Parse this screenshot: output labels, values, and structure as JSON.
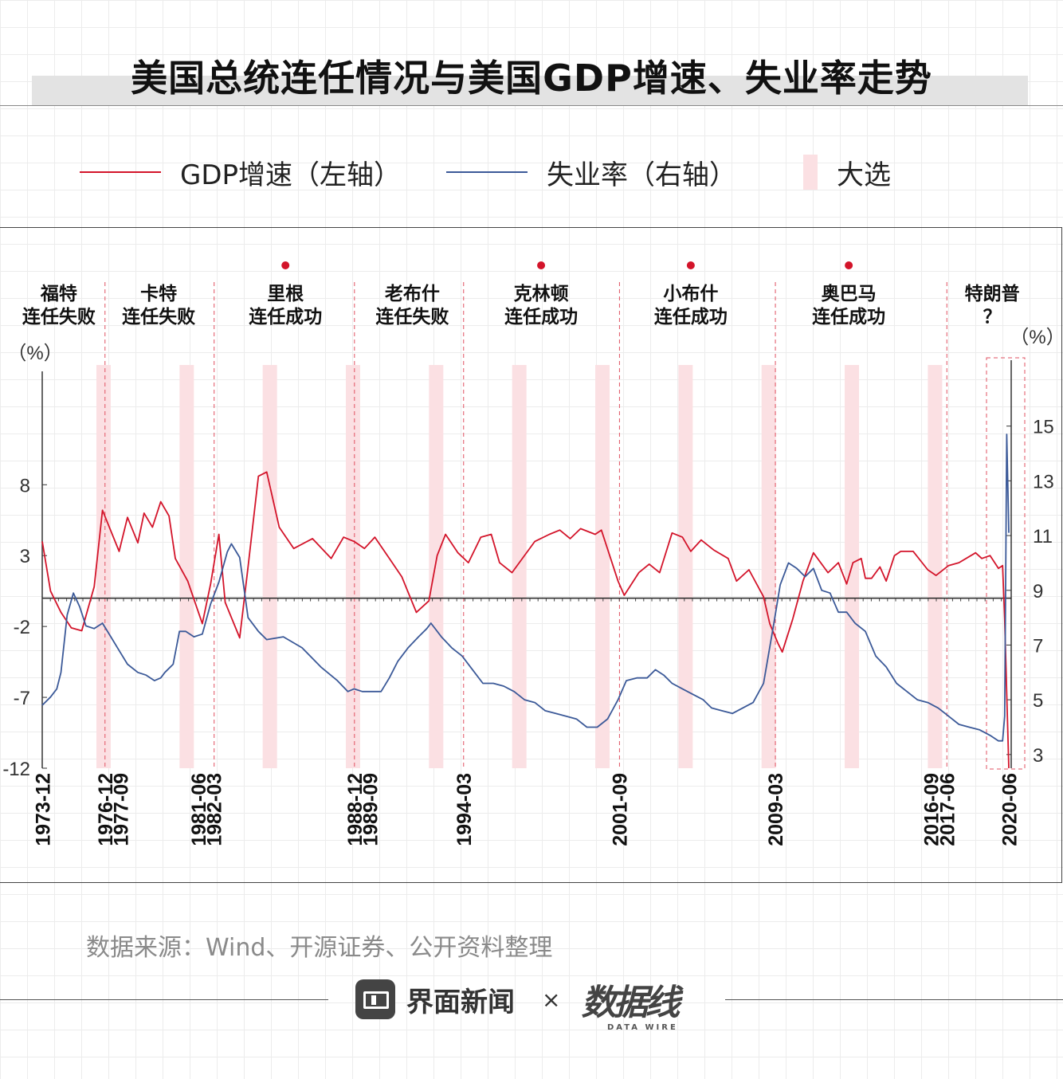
{
  "title": "美国总统连任情况与美国GDP增速、失业率走势",
  "legend": {
    "gdp": "GDP增速（左轴）",
    "unemployment": "失业率（右轴）",
    "election": "大选"
  },
  "colors": {
    "gdp": "#d3142a",
    "unemployment": "#3b5998",
    "election": "#fbe0e3",
    "divider": "#e05060"
  },
  "source": "数据来源：Wind、开源证券、公开资料整理",
  "footer": {
    "brand": "界面新闻",
    "times": "×",
    "logo": "数据线",
    "logo_sub": "DATA WIRE"
  },
  "chart_data": {
    "type": "line",
    "left_axis_unit": "（%）",
    "right_axis_unit": "（%）",
    "left_ticks": [
      8,
      3,
      -2,
      -7,
      -12
    ],
    "right_ticks": [
      15,
      13,
      11,
      9,
      7,
      5,
      3
    ],
    "left_ylim": [
      -12,
      16
    ],
    "right_ylim": [
      2.5,
      17
    ],
    "xlim": [
      1973.9,
      2020.4
    ],
    "x_tick_labels": [
      {
        "label": "1973-12",
        "x": 1973.92
      },
      {
        "label": "1976-12",
        "x": 1976.92
      },
      {
        "label": "1977-09",
        "x": 1977.67
      },
      {
        "label": "1981-06",
        "x": 1981.42
      },
      {
        "label": "1982-03",
        "x": 1982.17
      },
      {
        "label": "1988-12",
        "x": 1988.92
      },
      {
        "label": "1989-09",
        "x": 1989.67
      },
      {
        "label": "1994-03",
        "x": 1994.17
      },
      {
        "label": "2001-09",
        "x": 2001.67
      },
      {
        "label": "2009-03",
        "x": 2009.17
      },
      {
        "label": "2016-09",
        "x": 2016.67
      },
      {
        "label": "2017-06",
        "x": 2017.42
      },
      {
        "label": "2020-06",
        "x": 2020.42
      }
    ],
    "dividers": [
      1976.92,
      1982.17,
      1988.92,
      1994.17,
      2001.67,
      2009.17,
      2017.42
    ],
    "elections": [
      1976.85,
      1980.85,
      1984.85,
      1988.85,
      1992.85,
      1996.85,
      2000.85,
      2004.85,
      2008.85,
      2012.85,
      2016.85
    ],
    "presidencies": [
      {
        "name": "福特",
        "result": "连任失败",
        "x": 1974.7,
        "success": false
      },
      {
        "name": "卡特",
        "result": "连任失败",
        "x": 1979.5,
        "success": false
      },
      {
        "name": "里根",
        "result": "连任成功",
        "x": 1985.6,
        "success": true
      },
      {
        "name": "老布什",
        "result": "连任失败",
        "x": 1991.7,
        "success": false
      },
      {
        "name": "克林顿",
        "result": "连任成功",
        "x": 1997.9,
        "success": true
      },
      {
        "name": "小布什",
        "result": "连任成功",
        "x": 2005.1,
        "success": true
      },
      {
        "name": "奥巴马",
        "result": "连任成功",
        "x": 2012.7,
        "success": true
      },
      {
        "name": "特朗普",
        "result": "？",
        "x": 2019.6,
        "success": false
      }
    ],
    "series": [
      {
        "name": "GDP增速（左轴）",
        "axis": "left",
        "x": [
          1973.9,
          1974.3,
          1974.8,
          1975.3,
          1975.8,
          1976.4,
          1976.8,
          1977.6,
          1978.0,
          1978.5,
          1978.8,
          1979.2,
          1979.6,
          1980.0,
          1980.3,
          1980.9,
          1981.6,
          1982.0,
          1982.4,
          1982.7,
          1983.4,
          1983.8,
          1984.3,
          1984.7,
          1985.3,
          1986.0,
          1986.9,
          1987.8,
          1988.4,
          1988.9,
          1989.4,
          1989.9,
          1990.6,
          1991.2,
          1991.9,
          1992.5,
          1992.9,
          1993.3,
          1993.9,
          1994.4,
          1995.0,
          1995.5,
          1995.9,
          1996.5,
          1997.6,
          1998.3,
          1998.8,
          1999.3,
          1999.8,
          2000.5,
          2000.8,
          2001.6,
          2001.9,
          2002.6,
          2003.1,
          2003.6,
          2004.2,
          2004.7,
          2005.1,
          2005.6,
          2006.2,
          2006.9,
          2007.3,
          2007.9,
          2008.6,
          2008.9,
          2009.3,
          2009.5,
          2010.0,
          2010.5,
          2011.0,
          2011.7,
          2012.2,
          2012.6,
          2012.9,
          2013.3,
          2013.5,
          2013.8,
          2014.2,
          2014.5,
          2014.9,
          2015.2,
          2015.8,
          2016.5,
          2016.9,
          2017.5,
          2018.0,
          2018.8,
          2019.1,
          2019.5,
          2019.9,
          2020.1,
          2020.2,
          2020.4
        ],
        "values": [
          4.0,
          0.5,
          -1.0,
          -2.1,
          -2.3,
          0.8,
          6.2,
          3.3,
          5.7,
          3.9,
          6.0,
          5.0,
          6.8,
          5.8,
          2.8,
          1.2,
          -1.8,
          1.0,
          4.5,
          -0.3,
          -2.8,
          2.2,
          8.6,
          8.9,
          5.0,
          3.5,
          4.2,
          2.8,
          4.3,
          4.0,
          3.5,
          4.3,
          2.8,
          1.5,
          -1.0,
          -0.2,
          3.0,
          4.5,
          3.2,
          2.5,
          4.3,
          4.5,
          2.5,
          1.8,
          4.0,
          4.5,
          4.8,
          4.2,
          4.9,
          4.5,
          4.8,
          1.2,
          0.2,
          1.8,
          2.4,
          1.8,
          4.6,
          4.3,
          3.3,
          4.1,
          3.4,
          2.8,
          1.2,
          2.0,
          0.1,
          -1.8,
          -3.2,
          -3.8,
          -1.5,
          1.2,
          3.2,
          1.8,
          2.5,
          1.0,
          2.5,
          2.8,
          1.4,
          1.4,
          2.2,
          1.2,
          3.0,
          3.3,
          3.3,
          2.0,
          1.6,
          2.3,
          2.5,
          3.2,
          2.8,
          3.0,
          2.1,
          2.3,
          -1.5,
          -12.0
        ]
      },
      {
        "name": "失业率（右轴）",
        "axis": "right",
        "x": [
          1973.9,
          1974.3,
          1974.6,
          1974.8,
          1975.1,
          1975.4,
          1975.7,
          1976.0,
          1976.4,
          1976.8,
          1977.2,
          1977.6,
          1978.0,
          1978.5,
          1978.9,
          1979.3,
          1979.6,
          1979.8,
          1980.2,
          1980.5,
          1980.8,
          1981.2,
          1981.6,
          1982.0,
          1982.4,
          1982.8,
          1983.0,
          1983.4,
          1983.8,
          1984.3,
          1984.7,
          1985.5,
          1986.4,
          1987.3,
          1988.1,
          1988.6,
          1988.9,
          1989.3,
          1989.7,
          1990.2,
          1990.6,
          1991.0,
          1991.5,
          1992.0,
          1992.4,
          1992.6,
          1993.1,
          1993.6,
          1994.1,
          1994.6,
          1995.1,
          1995.6,
          1996.1,
          1996.6,
          1997.1,
          1997.6,
          1998.1,
          1998.6,
          1999.1,
          1999.6,
          2000.1,
          2000.6,
          2001.1,
          2001.6,
          2002.0,
          2002.5,
          2003.0,
          2003.4,
          2003.8,
          2004.2,
          2004.7,
          2005.2,
          2005.7,
          2006.1,
          2006.6,
          2007.1,
          2007.6,
          2008.1,
          2008.6,
          2009.1,
          2009.4,
          2009.8,
          2010.2,
          2010.6,
          2011.0,
          2011.4,
          2011.8,
          2012.2,
          2012.6,
          2013.0,
          2013.5,
          2014.0,
          2014.5,
          2015.0,
          2015.5,
          2016.0,
          2016.5,
          2017.0,
          2017.5,
          2018.0,
          2018.5,
          2019.0,
          2019.5,
          2019.9,
          2020.1,
          2020.2,
          2020.3,
          2020.4
        ],
        "values": [
          4.8,
          5.1,
          5.4,
          6.0,
          8.1,
          8.9,
          8.4,
          7.7,
          7.6,
          7.8,
          7.3,
          6.8,
          6.3,
          6.0,
          5.9,
          5.7,
          5.8,
          6.0,
          6.3,
          7.5,
          7.5,
          7.3,
          7.4,
          8.5,
          9.3,
          10.4,
          10.7,
          10.2,
          8.0,
          7.5,
          7.2,
          7.3,
          6.9,
          6.2,
          5.7,
          5.3,
          5.4,
          5.3,
          5.3,
          5.3,
          5.8,
          6.4,
          6.9,
          7.3,
          7.6,
          7.8,
          7.3,
          6.9,
          6.6,
          6.1,
          5.6,
          5.6,
          5.5,
          5.3,
          5.0,
          4.9,
          4.6,
          4.5,
          4.4,
          4.3,
          4.0,
          4.0,
          4.3,
          5.0,
          5.7,
          5.8,
          5.8,
          6.1,
          5.9,
          5.6,
          5.4,
          5.2,
          5.0,
          4.7,
          4.6,
          4.5,
          4.7,
          4.9,
          5.6,
          7.8,
          9.2,
          10.0,
          9.8,
          9.5,
          9.8,
          9.0,
          8.9,
          8.2,
          8.2,
          7.8,
          7.5,
          6.6,
          6.2,
          5.6,
          5.3,
          5.0,
          4.9,
          4.7,
          4.4,
          4.1,
          4.0,
          3.9,
          3.7,
          3.5,
          3.5,
          4.4,
          14.7,
          11.1
        ]
      }
    ]
  }
}
